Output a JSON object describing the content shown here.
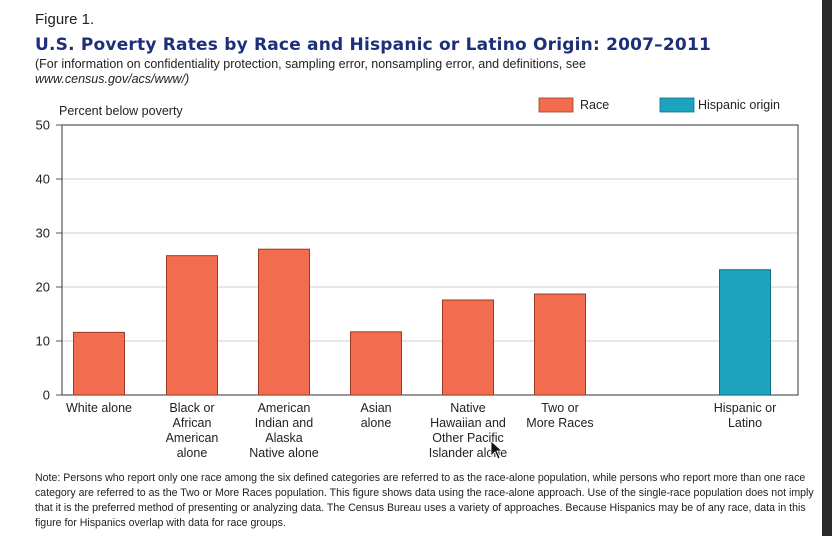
{
  "figure": {
    "label": "Figure 1.",
    "title": "U.S. Poverty Rates by Race and Hispanic or Latino Origin: 2007–2011",
    "subtitle_line1": "(For information on confidentiality protection, sampling error, nonsampling error, and definitions, see",
    "subtitle_url": "www.census.gov/acs/www/)",
    "note": "Note: Persons who report only one race among the six defined categories are referred to as the race-alone population, while persons who report more than one race category are referred to as the Two or More Races population. This figure shows data using the race-alone approach. Use of the single-race population does not imply that it is the preferred method of presenting or analyzing data. The Census Bureau uses a variety of approaches. Because Hispanics may be of any race, data in this figure for Hispanics overlap with data for race groups."
  },
  "colors": {
    "race": "#f26d4f",
    "hispanic": "#1ea3bf",
    "bar_stroke": "#9b3b27",
    "hispanic_stroke": "#0f6f84",
    "axis": "#555555",
    "grid": "#cfcfcf"
  },
  "chart_data": {
    "type": "bar",
    "ylabel": "Percent below poverty",
    "ylim": [
      0,
      50
    ],
    "yticks": [
      0,
      10,
      20,
      30,
      40,
      50
    ],
    "grid": true,
    "legend_position": "top-right",
    "legend": [
      {
        "name": "Race",
        "color_key": "race"
      },
      {
        "name": "Hispanic origin",
        "color_key": "hispanic"
      }
    ],
    "categories": [
      {
        "label": [
          "White alone"
        ],
        "value": 11.6,
        "group": "race"
      },
      {
        "label": [
          "Black or",
          "African",
          "American",
          "alone"
        ],
        "value": 25.8,
        "group": "race"
      },
      {
        "label": [
          "American",
          "Indian and",
          "Alaska",
          "Native alone"
        ],
        "value": 27.0,
        "group": "race"
      },
      {
        "label": [
          "Asian",
          "alone"
        ],
        "value": 11.7,
        "group": "race"
      },
      {
        "label": [
          "Native",
          "Hawaiian and",
          "Other Pacific",
          "Islander alone"
        ],
        "value": 17.6,
        "group": "race"
      },
      {
        "label": [
          "Two or",
          "More Races"
        ],
        "value": 18.7,
        "group": "race"
      },
      {
        "label": [
          "Hispanic or",
          "Latino"
        ],
        "value": 23.2,
        "group": "hispanic"
      }
    ]
  }
}
